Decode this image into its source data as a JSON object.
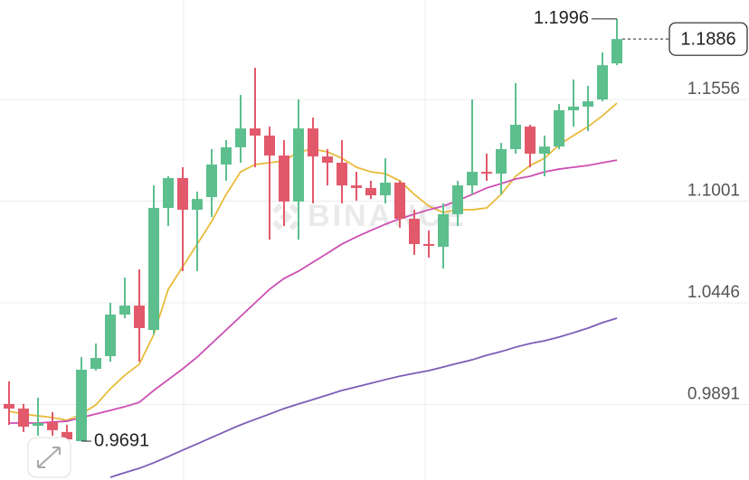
{
  "chart_data": {
    "type": "candlestick",
    "watermark": "BINANCE",
    "ylim": [
      0.9479,
      1.2099
    ],
    "yticks": [
      0.9891,
      1.0446,
      1.1001,
      1.1556
    ],
    "grid": true,
    "up_color": "#5cbf8d",
    "down_color": "#e2596b",
    "open": [
      0.9894,
      0.9869,
      0.9775,
      0.9795,
      0.9741,
      0.9691,
      1.0086,
      1.0155,
      1.0382,
      1.0431,
      1.0298,
      1.0964,
      1.1127,
      1.0954,
      1.1023,
      1.1201,
      1.1295,
      1.1398,
      1.1359,
      1.125,
      1.0999,
      1.1398,
      1.1245,
      1.1211,
      1.1087,
      1.1073,
      1.1033,
      1.1102,
      1.0905,
      1.0767,
      1.0752,
      1.093,
      1.1087,
      1.1161,
      1.1151,
      1.1285,
      1.1408,
      1.126,
      1.1299,
      1.1497,
      1.1517,
      1.1556,
      1.1753
    ],
    "high": [
      1.0017,
      0.9894,
      0.9928,
      0.9849,
      0.978,
      1.015,
      1.0224,
      1.0446,
      1.0584,
      1.0629,
      1.1087,
      1.1137,
      1.1186,
      1.1053,
      1.1285,
      1.1334,
      1.1581,
      1.1729,
      1.1408,
      1.1334,
      1.1556,
      1.1457,
      1.1285,
      1.1334,
      1.1161,
      1.1112,
      1.1235,
      1.1112,
      1.0954,
      1.0841,
      1.0989,
      1.1112,
      1.1556,
      1.126,
      1.1319,
      1.1645,
      1.1418,
      1.1359,
      1.1531,
      1.1665,
      1.163,
      1.1813,
      1.1996
    ],
    "low": [
      0.978,
      0.9741,
      0.9721,
      0.9721,
      0.9691,
      0.9691,
      1.0076,
      1.0125,
      1.0362,
      1.0125,
      1.0273,
      1.0865,
      1.0619,
      1.0619,
      1.0915,
      1.1112,
      1.1211,
      1.1186,
      1.0791,
      1.0865,
      1.0791,
      1.0989,
      1.1087,
      1.0989,
      1.1004,
      1.1013,
      1.0989,
      1.0856,
      1.0708,
      1.0693,
      1.0633,
      1.0865,
      1.1038,
      1.1112,
      1.1038,
      1.126,
      1.1186,
      1.1137,
      1.1285,
      1.1408,
      1.1383,
      1.1546,
      1.1743
    ],
    "close": [
      0.9869,
      0.977,
      0.979,
      0.9751,
      0.9701,
      1.0081,
      1.0145,
      1.0382,
      1.0431,
      1.0308,
      1.0964,
      1.1127,
      1.0954,
      1.1013,
      1.1201,
      1.1295,
      1.1398,
      1.1359,
      1.125,
      1.0999,
      1.1398,
      1.1245,
      1.1211,
      1.1087,
      1.1073,
      1.1033,
      1.1102,
      1.0905,
      1.0767,
      1.0757,
      1.093,
      1.1087,
      1.1161,
      1.1151,
      1.1285,
      1.1418,
      1.126,
      1.1299,
      1.1497,
      1.1517,
      1.1546,
      1.1743,
      1.1886
    ],
    "series": [
      {
        "color": "#e8bb3c",
        "values": [
          0.9854,
          0.9839,
          0.9829,
          0.982,
          0.9805,
          0.9839,
          0.9889,
          0.9977,
          1.0051,
          1.0111,
          1.0273,
          1.052,
          1.0643,
          1.0767,
          1.089,
          1.1038,
          1.1161,
          1.1201,
          1.1211,
          1.1221,
          1.127,
          1.1285,
          1.127,
          1.1235,
          1.1186,
          1.1161,
          1.1151,
          1.1112,
          1.1038,
          1.0974,
          1.0939,
          1.0954,
          1.0954,
          1.0964,
          1.1038,
          1.1137,
          1.1196,
          1.1235,
          1.1309,
          1.1359,
          1.1408,
          1.1467,
          1.1536
        ]
      },
      {
        "color": "#cc4fb3",
        "values": [
          0.979,
          0.979,
          0.979,
          0.9795,
          0.98,
          0.982,
          0.9839,
          0.9859,
          0.9879,
          0.9903,
          0.9968,
          1.0027,
          1.0086,
          1.015,
          1.0224,
          1.0298,
          1.0372,
          1.0446,
          1.052,
          1.0579,
          1.0619,
          1.0668,
          1.0717,
          1.0767,
          1.0806,
          1.0841,
          1.0875,
          1.0905,
          1.093,
          1.0954,
          1.0974,
          1.1004,
          1.1038,
          1.1073,
          1.1097,
          1.1122,
          1.1137,
          1.1161,
          1.1176,
          1.1186,
          1.1196,
          1.1211,
          1.1225
        ]
      },
      {
        "color": "#7d5db5",
        "values": [
          null,
          null,
          null,
          null,
          null,
          null,
          null,
          0.9494,
          0.9519,
          0.9543,
          0.9573,
          0.9607,
          0.9642,
          0.9676,
          0.9711,
          0.9746,
          0.978,
          0.981,
          0.9839,
          0.9869,
          0.9894,
          0.9918,
          0.9943,
          0.9968,
          0.9987,
          1.0007,
          1.0027,
          1.0046,
          1.0061,
          1.0076,
          1.0096,
          1.0116,
          1.0135,
          1.016,
          1.018,
          1.0204,
          1.0224,
          1.0239,
          1.0259,
          1.0283,
          1.0308,
          1.0338,
          1.0362
        ]
      }
    ],
    "high_marker": 1.1996,
    "low_marker": 0.9691,
    "last_price": 1.1886
  }
}
